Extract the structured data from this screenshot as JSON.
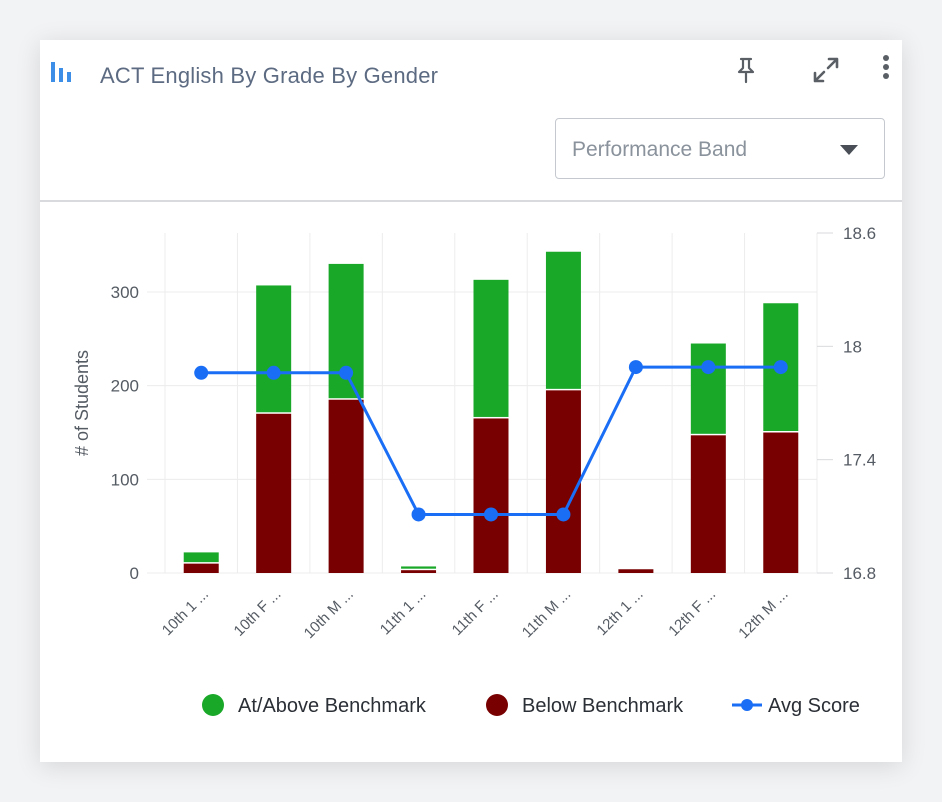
{
  "header": {
    "title": "ACT English By Grade By Gender",
    "chart_icon": "bar-chart-icon",
    "pin_icon": "pin-icon",
    "expand_icon": "expand-icon",
    "more_icon": "more-vertical-icon"
  },
  "filter": {
    "selected": "Performance Band"
  },
  "colors": {
    "above": "#1aa829",
    "below": "#780000",
    "avg": "#1a6ef5",
    "grid": "#ececec",
    "axis_text": "#555b63"
  },
  "chart_data": {
    "type": "bar",
    "stacked": true,
    "categories": [
      "10th 1 ...",
      "10th F ...",
      "10th M ...",
      "11th 1 ...",
      "11th F ...",
      "11th M ...",
      "12th 1 ...",
      "12th F ...",
      "12th M ..."
    ],
    "series": [
      {
        "name": "Below Benchmark",
        "values": [
          10,
          170,
          185,
          3,
          165,
          195,
          4,
          147,
          150
        ]
      },
      {
        "name": "At/Above Benchmark",
        "values": [
          12,
          137,
          145,
          4,
          148,
          148,
          0,
          98,
          138
        ]
      },
      {
        "name": "Avg Score",
        "type": "line",
        "axis": "right",
        "values": [
          17.86,
          17.86,
          17.86,
          17.11,
          17.11,
          17.11,
          17.89,
          17.89,
          17.89
        ]
      }
    ],
    "ylabel": "# of Students",
    "ylim": [
      0,
      363
    ],
    "yticks": [
      0,
      100,
      200,
      300
    ],
    "y2lim": [
      16.8,
      18.6
    ],
    "y2ticks": [
      "16.8",
      "17.4",
      "18",
      "18.6"
    ],
    "grid": true,
    "legend_position": "bottom-right"
  },
  "legend": {
    "above_label": "At/Above Benchmark",
    "below_label": "Below Benchmark",
    "avg_label": "Avg Score"
  }
}
